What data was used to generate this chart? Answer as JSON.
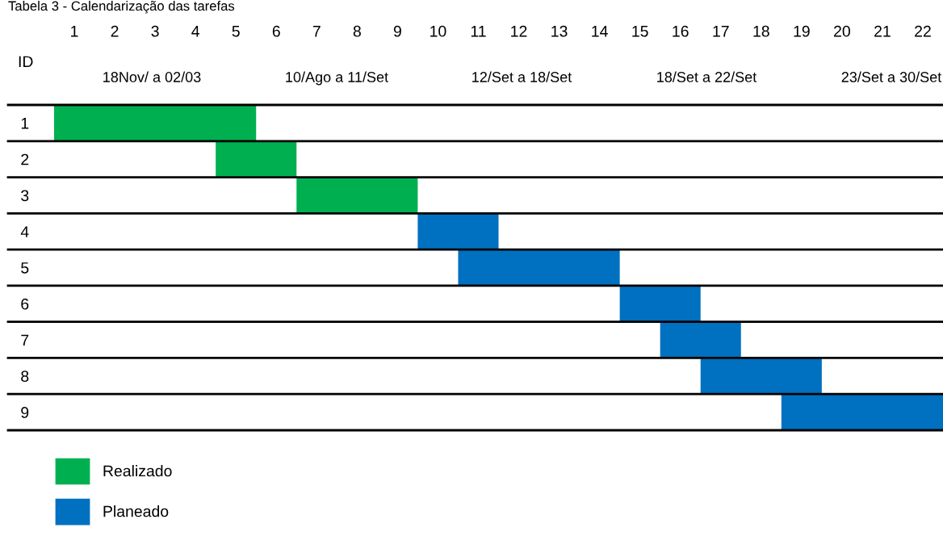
{
  "chart_data": {
    "type": "bar",
    "orientation": "horizontal",
    "title": "Tabela 3 - Calendarização das tarefas",
    "ylabel": "ID",
    "categories": [
      "1",
      "2",
      "3",
      "4",
      "5",
      "6",
      "7",
      "8",
      "9"
    ],
    "series": [
      {
        "name": "Realizado",
        "color": "#00b050",
        "base": [
          0.5,
          4.5,
          6.5,
          null,
          null,
          null,
          null,
          null,
          null
        ],
        "values": [
          5,
          2,
          3,
          null,
          null,
          null,
          null,
          null,
          null
        ]
      },
      {
        "name": "Planeado",
        "color": "#0070c0",
        "base": [
          null,
          null,
          null,
          9.5,
          10.5,
          14.5,
          15.5,
          16.5,
          18.5
        ],
        "values": [
          null,
          null,
          null,
          2,
          4,
          2,
          2,
          3,
          4
        ]
      }
    ],
    "xlim": [
      0.5,
      22.5
    ],
    "xticks": [
      1,
      2,
      3,
      4,
      5,
      6,
      7,
      8,
      9,
      10,
      11,
      12,
      13,
      14,
      15,
      16,
      17,
      18,
      19,
      20,
      21,
      22
    ],
    "annotations": [
      "18Nov/ a 02/03",
      "10/Ago a 11/Set",
      "12/Set a 18/Set",
      "18/Set a 22/Set",
      "23/Set a 30/Set"
    ],
    "grid": "y",
    "legend": "bottom left"
  }
}
